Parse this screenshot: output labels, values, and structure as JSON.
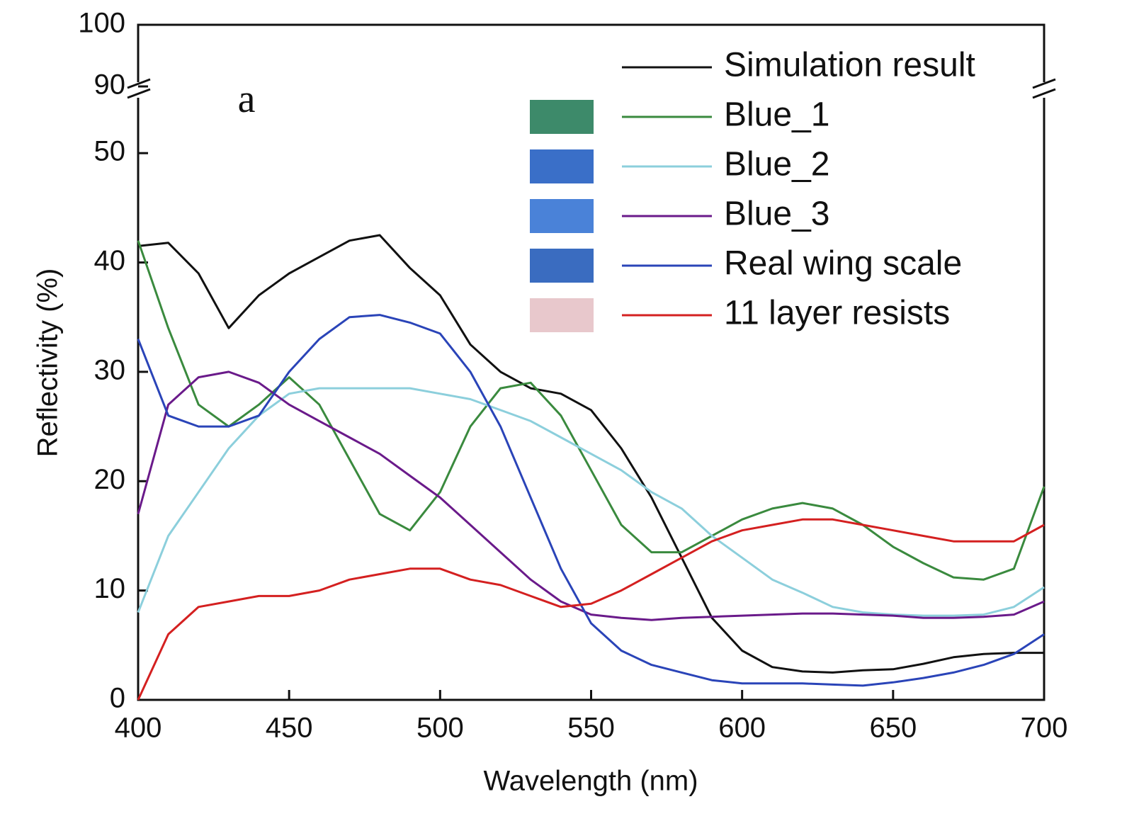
{
  "chart_data": {
    "type": "line",
    "x_label": "Wavelength (nm)",
    "y_label": "Reflectivity (%)",
    "annotation": "a",
    "xlim": [
      400,
      700
    ],
    "xticks": [
      400,
      450,
      500,
      550,
      600,
      650,
      700
    ],
    "ylim": [
      0,
      100
    ],
    "ybreak": [
      55,
      90
    ],
    "yticks": [
      0,
      10,
      20,
      30,
      40,
      50,
      90,
      100
    ],
    "legend": "upper right",
    "x": [
      400,
      410,
      420,
      430,
      440,
      450,
      460,
      470,
      480,
      490,
      500,
      510,
      520,
      530,
      540,
      550,
      560,
      570,
      580,
      590,
      600,
      610,
      620,
      630,
      640,
      650,
      660,
      670,
      680,
      690,
      700
    ],
    "series": [
      {
        "name": "Simulation result",
        "color": "#111111",
        "values": [
          41.5,
          41.8,
          39,
          34,
          37,
          39,
          40.5,
          42,
          42.5,
          39.5,
          37,
          32.5,
          30,
          28.5,
          28,
          26.5,
          23,
          18.5,
          13,
          7.5,
          4.5,
          3,
          2.6,
          2.5,
          2.7,
          2.8,
          3.3,
          3.9,
          4.2,
          4.3,
          4.3
        ]
      },
      {
        "name": "Blue_1",
        "color": "#3a8a3e",
        "swatch": "#3d8a6a",
        "values": [
          42,
          34,
          27,
          25,
          27,
          29.5,
          27,
          22,
          17,
          15.5,
          19,
          25,
          28.5,
          29,
          26,
          21,
          16,
          13.5,
          13.5,
          15,
          16.5,
          17.5,
          18,
          17.5,
          16,
          14,
          12.5,
          11.2,
          11,
          12,
          19.5
        ]
      },
      {
        "name": "Blue_2",
        "color": "#8ccfdc",
        "swatch": "#3a6fc8",
        "values": [
          8,
          15,
          19,
          23,
          26,
          28,
          28.5,
          28.5,
          28.5,
          28.5,
          28,
          27.5,
          26.5,
          25.5,
          24,
          22.5,
          21,
          19,
          17.5,
          15,
          13,
          11,
          9.8,
          8.5,
          8,
          7.8,
          7.7,
          7.7,
          7.8,
          8.5,
          10.3
        ]
      },
      {
        "name": "Blue_3",
        "color": "#6a1a8a",
        "swatch": "#4a82d8",
        "values": [
          17,
          27,
          29.5,
          30,
          29,
          27,
          25.5,
          24,
          22.5,
          20.5,
          18.5,
          16,
          13.5,
          11,
          9,
          7.8,
          7.5,
          7.3,
          7.5,
          7.6,
          7.7,
          7.8,
          7.9,
          7.9,
          7.8,
          7.7,
          7.5,
          7.5,
          7.6,
          7.8,
          9
        ]
      },
      {
        "name": "Real wing scale",
        "color": "#2a44b8",
        "swatch": "#3a6cc0",
        "values": [
          33,
          26,
          25,
          25,
          26,
          30,
          33,
          35,
          35.2,
          34.5,
          33.5,
          30,
          25,
          18.5,
          12,
          7,
          4.5,
          3.2,
          2.5,
          1.8,
          1.5,
          1.5,
          1.5,
          1.4,
          1.3,
          1.6,
          2,
          2.5,
          3.2,
          4.2,
          6
        ]
      },
      {
        "name": "11 layer resists",
        "color": "#d42020",
        "swatch": "#e8c8cc",
        "values": [
          0,
          6,
          8.5,
          9,
          9.5,
          9.5,
          10,
          11,
          11.5,
          12,
          12,
          11,
          10.5,
          9.5,
          8.5,
          8.8,
          10,
          11.5,
          13,
          14.5,
          15.5,
          16,
          16.5,
          16.5,
          16,
          15.5,
          15,
          14.5,
          14.5,
          14.5,
          16
        ]
      }
    ]
  }
}
